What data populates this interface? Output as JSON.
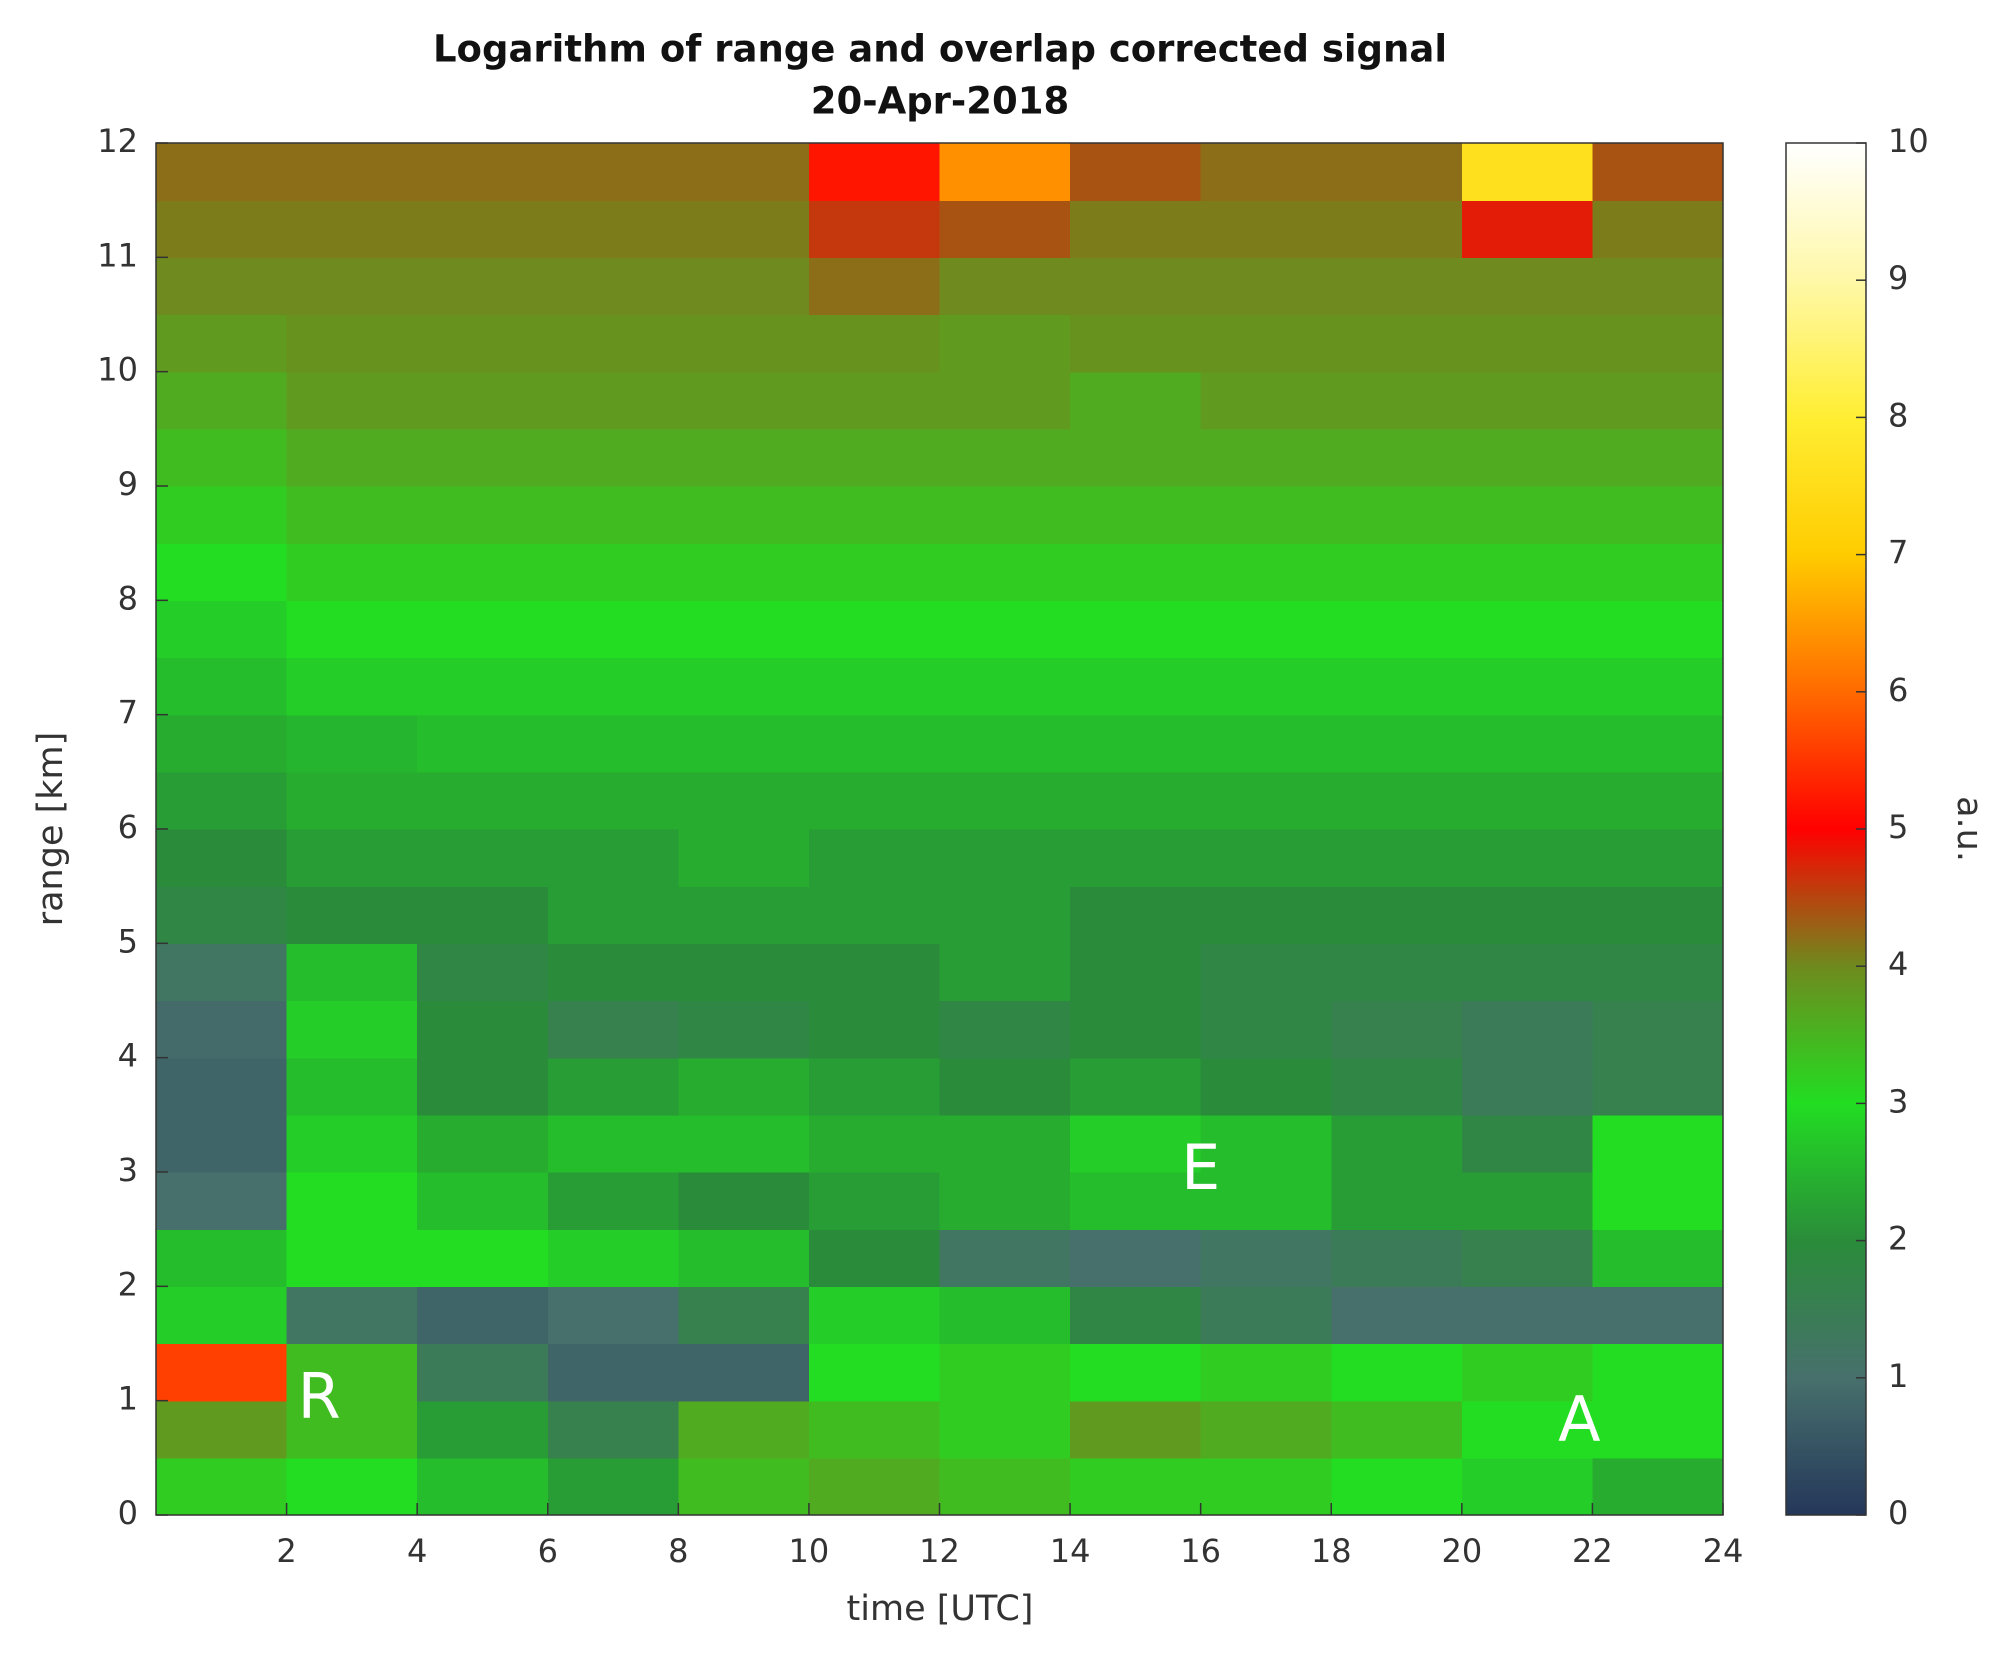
{
  "chart_data": {
    "type": "heatmap",
    "title": "Logarithm of range and overlap corrected signal",
    "subtitle": "20-Apr-2018",
    "x_label": "time [UTC]",
    "y_label": "range [km]",
    "colorbar_label": "a.u.",
    "x": [
      1,
      3,
      5,
      7,
      9,
      11,
      13,
      15,
      17,
      19,
      21,
      23
    ],
    "y": [
      0.25,
      0.75,
      1.25,
      1.75,
      2.25,
      2.75,
      3.25,
      3.75,
      4.25,
      4.75,
      5.25,
      5.75,
      6.25,
      6.75,
      7.25,
      7.75,
      8.25,
      8.75,
      9.25,
      9.75,
      10.25,
      10.75,
      11.25,
      11.75
    ],
    "values": [
      [
        3.2,
        3.0,
        2.6,
        2.2,
        3.4,
        3.6,
        3.4,
        3.2,
        3.2,
        3.0,
        2.8,
        2.4
      ],
      [
        3.8,
        3.4,
        2.2,
        1.6,
        3.6,
        3.4,
        3.2,
        3.8,
        3.6,
        3.4,
        3.0,
        3.0
      ],
      [
        5.6,
        3.4,
        1.4,
        0.8,
        0.8,
        3.0,
        3.2,
        3.0,
        3.2,
        3.0,
        3.2,
        3.0
      ],
      [
        2.8,
        1.2,
        0.8,
        1.0,
        1.6,
        2.8,
        2.6,
        1.8,
        1.4,
        1.0,
        1.0,
        1.0
      ],
      [
        2.6,
        3.0,
        3.0,
        2.8,
        2.6,
        2.0,
        1.2,
        1.0,
        1.2,
        1.4,
        1.6,
        2.6
      ],
      [
        1.0,
        3.0,
        2.6,
        2.2,
        2.0,
        2.2,
        2.4,
        2.6,
        2.6,
        2.2,
        2.2,
        3.0
      ],
      [
        0.8,
        2.8,
        2.4,
        2.6,
        2.6,
        2.4,
        2.4,
        2.8,
        2.6,
        2.2,
        1.8,
        3.0
      ],
      [
        0.8,
        2.6,
        2.0,
        2.2,
        2.4,
        2.2,
        2.0,
        2.2,
        2.0,
        1.8,
        1.4,
        1.6
      ],
      [
        0.9,
        2.8,
        2.0,
        1.6,
        1.8,
        2.0,
        1.8,
        2.0,
        1.8,
        1.6,
        1.4,
        1.6
      ],
      [
        1.2,
        2.6,
        1.8,
        2.0,
        2.0,
        2.0,
        2.2,
        2.0,
        1.8,
        1.8,
        1.8,
        1.8
      ],
      [
        1.8,
        2.0,
        2.0,
        2.2,
        2.2,
        2.2,
        2.2,
        2.0,
        2.0,
        2.0,
        2.0,
        2.0
      ],
      [
        2.0,
        2.2,
        2.2,
        2.2,
        2.4,
        2.2,
        2.2,
        2.2,
        2.2,
        2.2,
        2.2,
        2.2
      ],
      [
        2.2,
        2.4,
        2.4,
        2.4,
        2.4,
        2.4,
        2.4,
        2.4,
        2.4,
        2.4,
        2.4,
        2.4
      ],
      [
        2.4,
        2.5,
        2.6,
        2.6,
        2.6,
        2.6,
        2.6,
        2.6,
        2.6,
        2.6,
        2.6,
        2.6
      ],
      [
        2.6,
        2.8,
        2.8,
        2.8,
        2.8,
        2.8,
        2.8,
        2.8,
        2.8,
        2.8,
        2.8,
        2.8
      ],
      [
        2.8,
        3.0,
        3.0,
        3.0,
        3.0,
        3.0,
        3.0,
        3.0,
        3.0,
        3.0,
        3.0,
        3.0
      ],
      [
        3.0,
        3.2,
        3.2,
        3.2,
        3.2,
        3.2,
        3.2,
        3.2,
        3.2,
        3.2,
        3.2,
        3.2
      ],
      [
        3.2,
        3.4,
        3.4,
        3.4,
        3.4,
        3.4,
        3.4,
        3.4,
        3.4,
        3.4,
        3.4,
        3.4
      ],
      [
        3.4,
        3.6,
        3.6,
        3.6,
        3.6,
        3.6,
        3.6,
        3.6,
        3.6,
        3.6,
        3.6,
        3.6
      ],
      [
        3.6,
        3.8,
        3.8,
        3.8,
        3.8,
        3.8,
        3.8,
        3.6,
        3.8,
        3.8,
        3.8,
        3.8
      ],
      [
        3.8,
        3.9,
        3.9,
        3.9,
        3.9,
        3.9,
        3.8,
        3.9,
        3.9,
        3.9,
        3.9,
        3.9
      ],
      [
        4.0,
        4.0,
        4.0,
        4.0,
        4.0,
        4.2,
        4.0,
        4.0,
        4.0,
        4.0,
        4.0,
        4.0
      ],
      [
        4.1,
        4.1,
        4.1,
        4.1,
        4.1,
        4.6,
        4.4,
        4.1,
        4.1,
        4.1,
        4.8,
        4.1
      ],
      [
        4.2,
        4.2,
        4.2,
        4.2,
        4.2,
        5.2,
        6.4,
        4.4,
        4.2,
        4.2,
        7.6,
        4.4
      ]
    ],
    "xlim": [
      0,
      24
    ],
    "xticks": [
      2,
      4,
      6,
      8,
      10,
      12,
      14,
      16,
      18,
      20,
      22,
      24
    ],
    "ylim": [
      0,
      12
    ],
    "yticks": [
      0,
      1,
      2,
      3,
      4,
      5,
      6,
      7,
      8,
      9,
      10,
      11,
      12
    ],
    "clim": [
      0,
      10
    ],
    "cticks": [
      0,
      1,
      2,
      3,
      4,
      5,
      6,
      7,
      8,
      9,
      10
    ],
    "colormap": [
      "#25375a",
      "#47706c",
      "#2a8c3a",
      "#22dd22",
      "#6f8a1e",
      "#ff0000",
      "#ff6a00",
      "#ffcc00",
      "#ffee33",
      "#fff8a8",
      "#ffffff"
    ],
    "annotations": [
      "R",
      "E",
      "A"
    ]
  }
}
